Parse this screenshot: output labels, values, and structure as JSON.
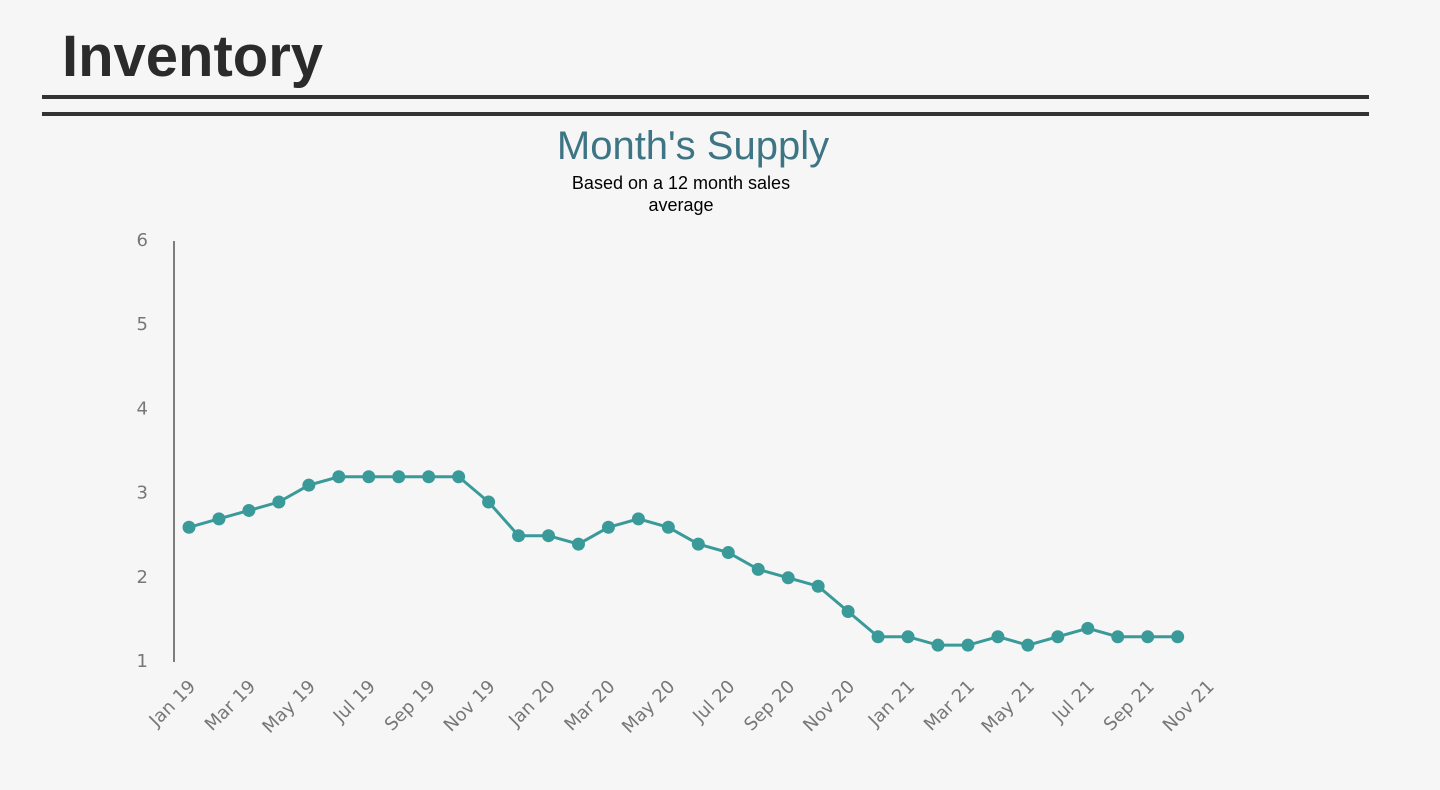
{
  "heading": "Inventory",
  "chart_data": {
    "type": "line",
    "title": "Month's Supply",
    "subtitle": "Based on a 12 month sales average",
    "categories": [
      "Jan 19",
      null,
      "Mar 19",
      null,
      "May 19",
      null,
      "Jul 19",
      null,
      "Sep 19",
      null,
      "Nov 19",
      null,
      "Jan 20",
      null,
      "Mar 20",
      null,
      "May 20",
      null,
      "Jul 20",
      null,
      "Sep 20",
      null,
      "Nov 20",
      null,
      "Jan 21",
      null,
      "Mar 21",
      null,
      "May 21",
      null,
      "Jul 21",
      null,
      "Sep 21",
      null,
      "Nov 21"
    ],
    "series": [
      {
        "name": "Month's Supply",
        "color": "#3a9a9a",
        "values": [
          2.6,
          2.7,
          2.8,
          2.9,
          3.1,
          3.2,
          3.2,
          3.2,
          3.2,
          3.2,
          2.9,
          2.5,
          2.5,
          2.4,
          2.6,
          2.7,
          2.6,
          2.4,
          2.3,
          2.1,
          2.0,
          1.9,
          1.6,
          1.3,
          1.3,
          1.2,
          1.2,
          1.3,
          1.2,
          1.3,
          1.4,
          1.3,
          1.3,
          1.3,
          null
        ]
      }
    ],
    "ylim": [
      1,
      6
    ],
    "yticks": [
      1,
      2,
      3,
      4,
      5,
      6
    ],
    "grid": false
  }
}
